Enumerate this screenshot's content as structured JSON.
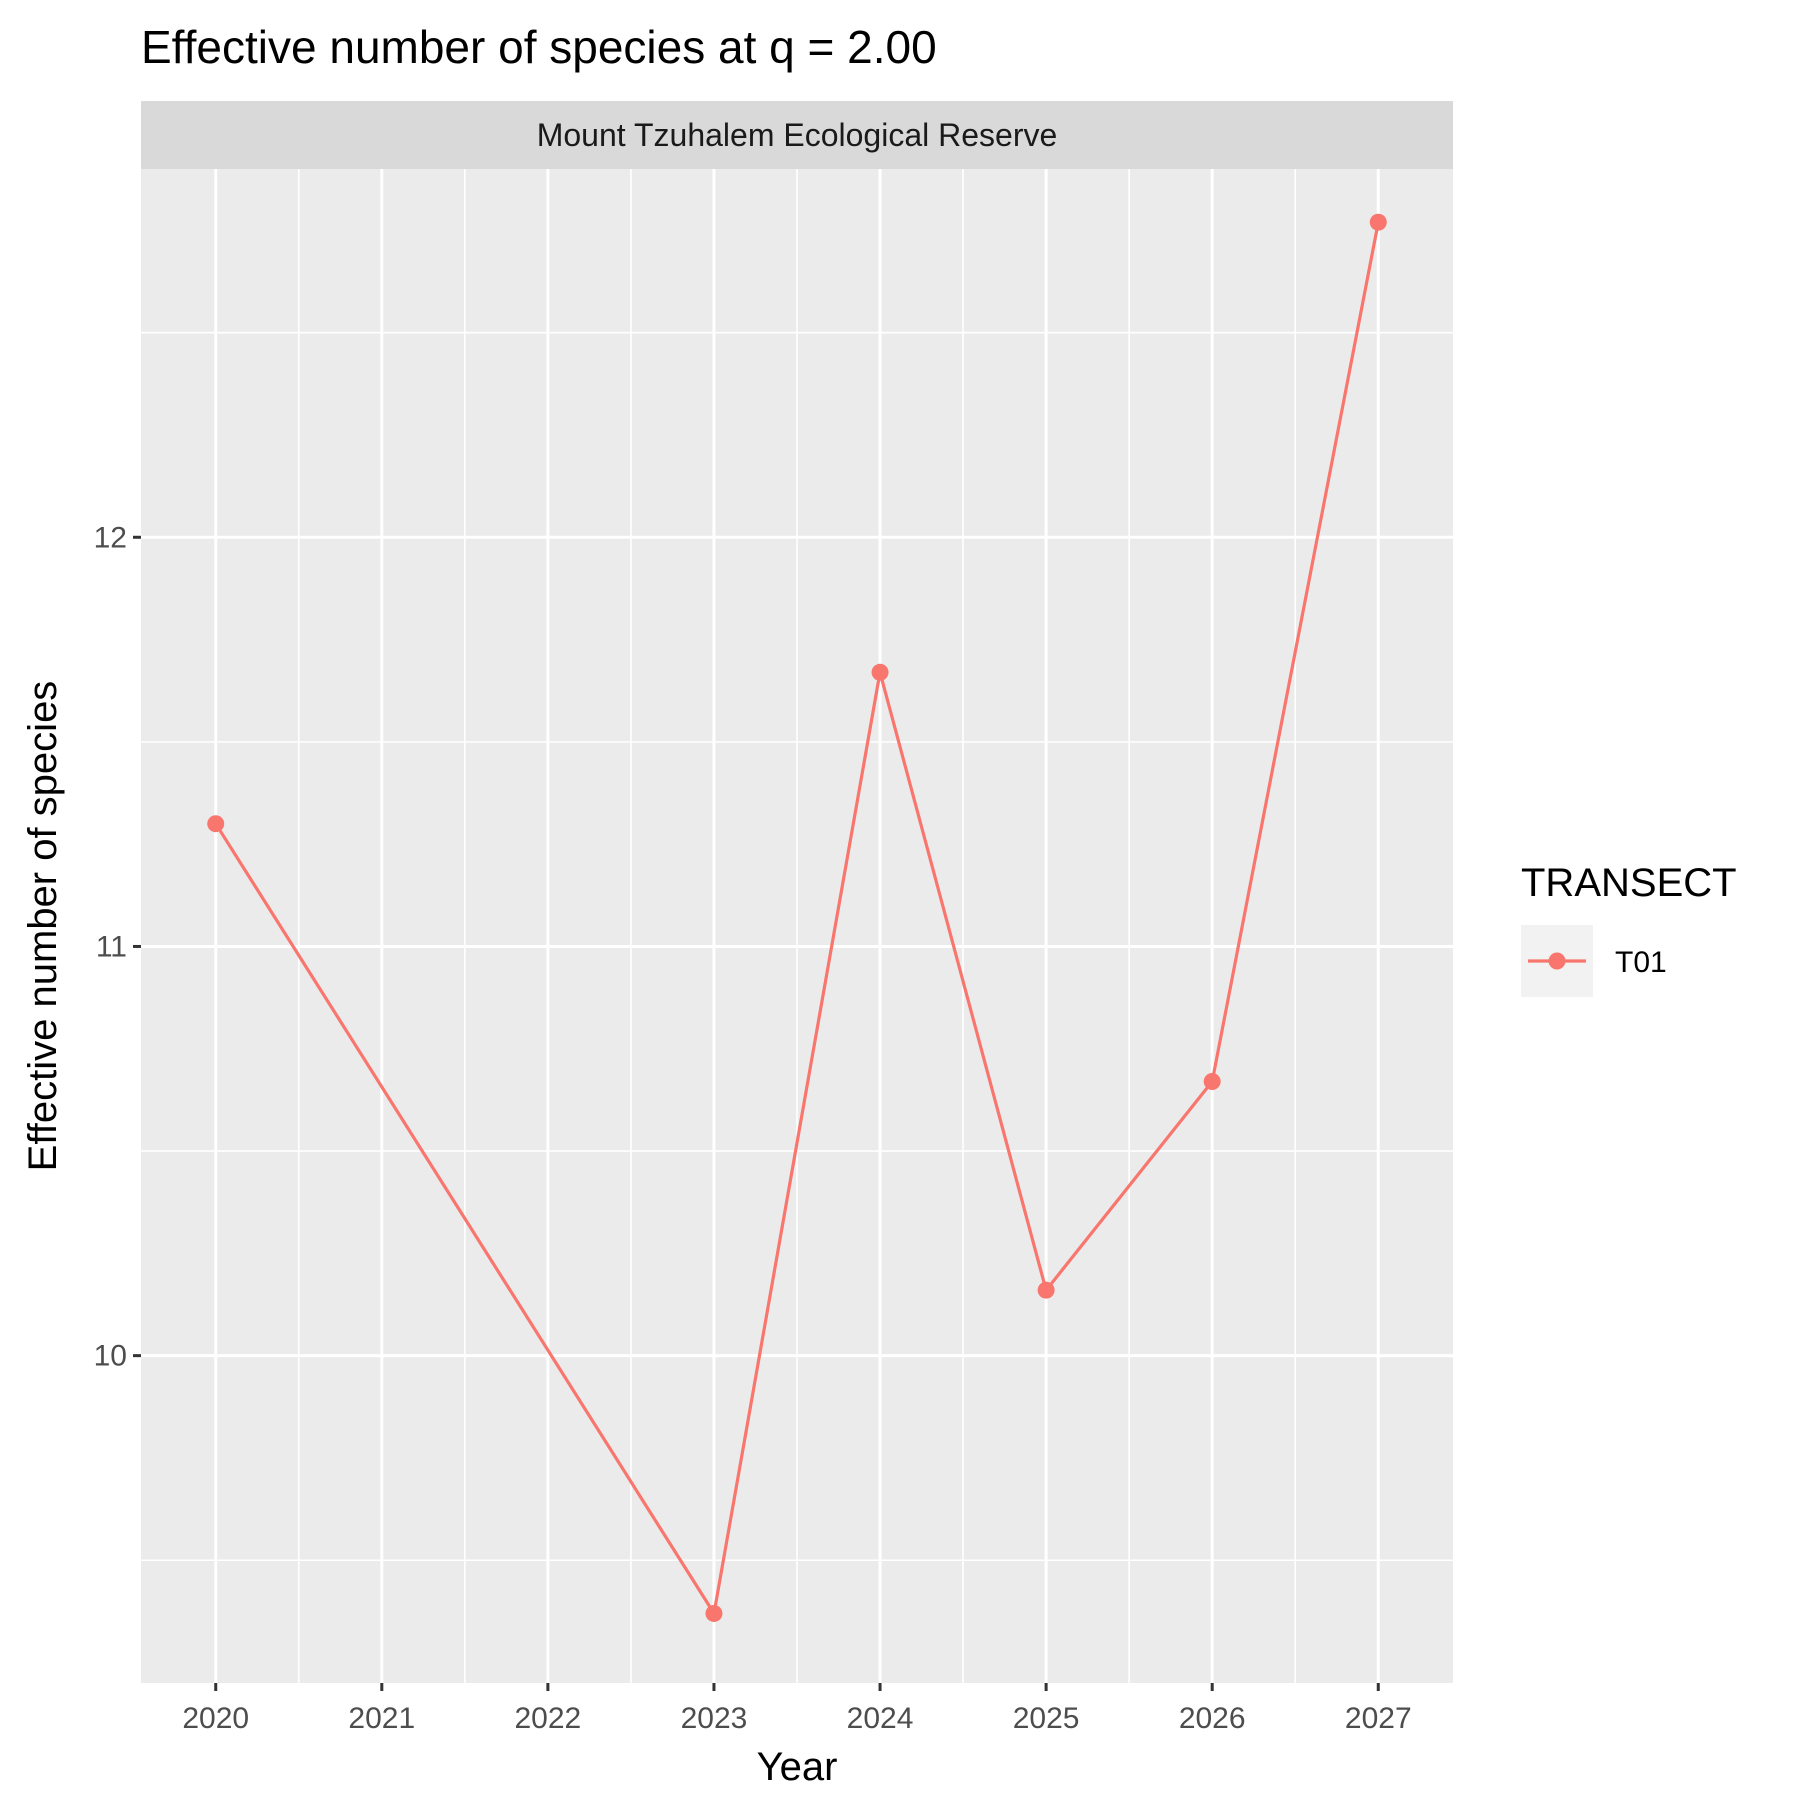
{
  "chart_data": {
    "type": "line",
    "title": "Effective number of species at q = 2.00",
    "facet_label": "Mount Tzuhalem Ecological Reserve",
    "xlabel": "Year",
    "ylabel": "Effective number of species",
    "x": [
      2020,
      2021,
      2022,
      2023,
      2024,
      2025,
      2026,
      2027
    ],
    "x_tick_labels": [
      "2020",
      "2021",
      "2022",
      "2023",
      "2024",
      "2025",
      "2026",
      "2027"
    ],
    "xlim": [
      2019.55,
      2027.45
    ],
    "y_ticks": [
      10,
      11,
      12
    ],
    "y_tick_labels": [
      "10",
      "11",
      "12"
    ],
    "ylim": [
      9.2,
      12.9
    ],
    "grid": true,
    "legend": {
      "title": "TRANSECT",
      "position": "right"
    },
    "series": [
      {
        "name": "T01",
        "color": "#F8766D",
        "points": [
          {
            "x": 2020,
            "y": 11.3
          },
          {
            "x": 2023,
            "y": 9.37
          },
          {
            "x": 2024,
            "y": 11.67
          },
          {
            "x": 2025,
            "y": 10.16
          },
          {
            "x": 2026,
            "y": 10.67
          },
          {
            "x": 2027,
            "y": 12.77
          }
        ]
      }
    ]
  }
}
